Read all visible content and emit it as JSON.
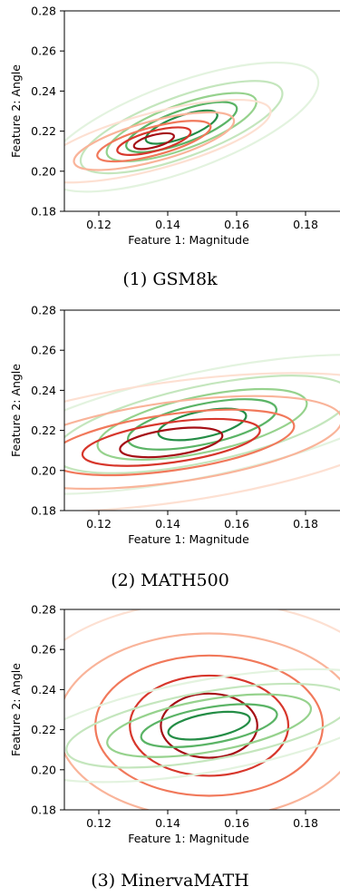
{
  "chart_data": [
    {
      "type": "contour",
      "caption": "(1) GSM8k",
      "xlabel": "Feature 1: Magnitude",
      "ylabel": "Feature 2: Angle",
      "xlim": [
        0.11,
        0.19
      ],
      "ylim": [
        0.18,
        0.28
      ],
      "xticks": [
        "0.12",
        "0.14",
        "0.16",
        "0.18"
      ],
      "yticks": [
        "0.18",
        "0.20",
        "0.22",
        "0.24",
        "0.26",
        "0.28"
      ],
      "grid": false,
      "series": [
        {
          "color_scale": "greens",
          "center": [
            0.144,
            0.222
          ],
          "rx": [
            0.042,
            0.031,
            0.023,
            0.017,
            0.011
          ],
          "ry": [
            0.022,
            0.015,
            0.011,
            0.008,
            0.0055
          ],
          "tilt_deg": 20,
          "colors": [
            "#e3f3df",
            "#c4e6bd",
            "#96d28d",
            "#5bb466",
            "#248d46"
          ]
        },
        {
          "color_scale": "reds",
          "center": [
            0.136,
            0.215
          ],
          "rx": [
            0.035,
            0.024,
            0.017,
            0.011,
            0.006
          ],
          "ry": [
            0.014,
            0.01,
            0.007,
            0.005,
            0.003
          ],
          "tilt_deg": 15,
          "colors": [
            "#fde0d2",
            "#f9b49a",
            "#f1795b",
            "#d7372c",
            "#a50f15"
          ]
        }
      ]
    },
    {
      "type": "contour",
      "caption": "(2) MATH500",
      "xlabel": "Feature 1: Magnitude",
      "ylabel": "Feature 2: Angle",
      "xlim": [
        0.11,
        0.19
      ],
      "ylim": [
        0.18,
        0.28
      ],
      "xticks": [
        "0.12",
        "0.14",
        "0.16",
        "0.18"
      ],
      "yticks": [
        "0.18",
        "0.20",
        "0.22",
        "0.24",
        "0.26",
        "0.28"
      ],
      "grid": false,
      "series": [
        {
          "color_scale": "greens",
          "center": [
            0.15,
            0.223
          ],
          "rx": [
            0.066,
            0.044,
            0.031,
            0.022,
            0.013
          ],
          "ry": [
            0.026,
            0.019,
            0.014,
            0.01,
            0.0065
          ],
          "tilt_deg": 12,
          "colors": [
            "#e3f3df",
            "#c4e6bd",
            "#96d28d",
            "#5bb466",
            "#248d46"
          ]
        },
        {
          "color_scale": "reds",
          "center": [
            0.141,
            0.214
          ],
          "rx": [
            0.074,
            0.05,
            0.036,
            0.026,
            0.015
          ],
          "ry": [
            0.03,
            0.02,
            0.014,
            0.01,
            0.0065
          ],
          "tilt_deg": 8,
          "colors": [
            "#fde0d2",
            "#f9b49a",
            "#f1795b",
            "#d7372c",
            "#a50f15"
          ]
        }
      ]
    },
    {
      "type": "contour",
      "caption": "(3) MinervaMATH",
      "xlabel": "Feature 1: Magnitude",
      "ylabel": "Feature 2: Angle",
      "xlim": [
        0.11,
        0.19
      ],
      "ylim": [
        0.18,
        0.28
      ],
      "xticks": [
        "0.12",
        "0.14",
        "0.16",
        "0.18"
      ],
      "yticks": [
        "0.18",
        "0.20",
        "0.22",
        "0.24",
        "0.26",
        "0.28"
      ],
      "grid": false,
      "series": [
        {
          "color_scale": "reds",
          "center": [
            0.152,
            0.222
          ],
          "rx": [
            0.058,
            0.044,
            0.033,
            0.023,
            0.014
          ],
          "ry": [
            0.062,
            0.046,
            0.035,
            0.025,
            0.016
          ],
          "tilt_deg": 0,
          "colors": [
            "#fde0d2",
            "#f9b49a",
            "#f1795b",
            "#d7372c",
            "#a50f15"
          ]
        },
        {
          "color_scale": "greens",
          "center": [
            0.152,
            0.222
          ],
          "rx": [
            0.056,
            0.042,
            0.03,
            0.02,
            0.012
          ],
          "ry": [
            0.023,
            0.017,
            0.013,
            0.009,
            0.006
          ],
          "tilt_deg": 10,
          "colors": [
            "#e3f3df",
            "#c4e6bd",
            "#96d28d",
            "#5bb466",
            "#248d46"
          ]
        }
      ]
    }
  ]
}
